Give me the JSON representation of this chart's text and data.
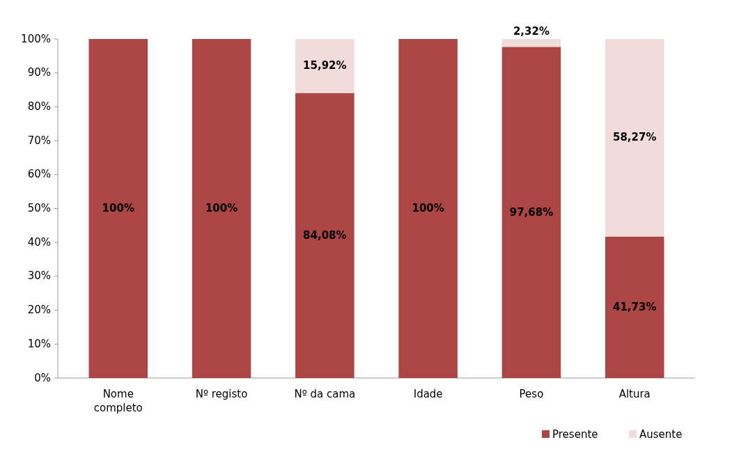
{
  "chart_data": {
    "type": "bar",
    "stacked": true,
    "categories": [
      "Nome completo",
      "Nº registo",
      "Nº da cama",
      "Idade",
      "Peso",
      "Altura"
    ],
    "series": [
      {
        "name": "Presente",
        "color": "#ab4644",
        "values": [
          100,
          100,
          84.08,
          100,
          97.68,
          41.73
        ],
        "value_labels": [
          "100%",
          "100%",
          "84,08%",
          "100%",
          "97,68%",
          "41,73%"
        ]
      },
      {
        "name": "Ausente",
        "color": "#f2dcdb",
        "values": [
          0,
          0,
          15.92,
          0,
          2.32,
          58.27
        ],
        "value_labels": [
          null,
          null,
          "15,92%",
          null,
          "2,32%",
          "58,27%"
        ]
      }
    ],
    "ylim": [
      0,
      100
    ],
    "yticks": [
      {
        "value": 0,
        "label": "0%"
      },
      {
        "value": 10,
        "label": "10%"
      },
      {
        "value": 20,
        "label": "20%"
      },
      {
        "value": 30,
        "label": "30%"
      },
      {
        "value": 40,
        "label": "40%"
      },
      {
        "value": 50,
        "label": "50%"
      },
      {
        "value": 60,
        "label": "60%"
      },
      {
        "value": 70,
        "label": "70%"
      },
      {
        "value": 80,
        "label": "80%"
      },
      {
        "value": 90,
        "label": "90%"
      },
      {
        "value": 100,
        "label": "100%"
      }
    ],
    "grid": false,
    "legend": "bottom right"
  }
}
